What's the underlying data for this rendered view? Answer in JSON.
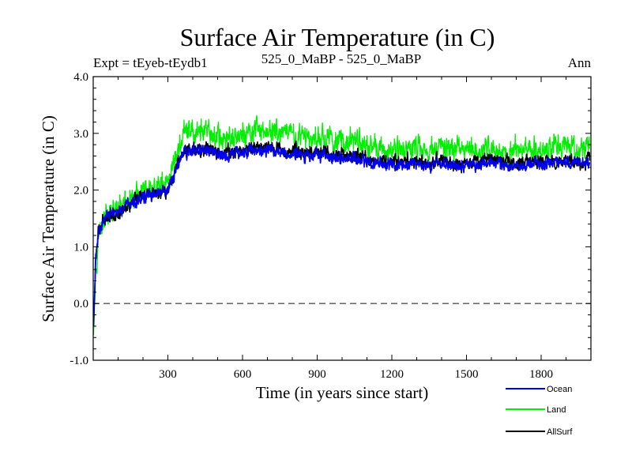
{
  "chart_data": {
    "type": "line",
    "title": "Surface Air Temperature (in C)",
    "subtitle_left": "Expt = tEyeb-tEydb1",
    "subtitle_center": "525_0_MaBP - 525_0_MaBP",
    "subtitle_right": "Ann",
    "xlabel": "Time (in years since start)",
    "ylabel": "Surface Air Temperature (in C)",
    "xlim": [
      0,
      2000
    ],
    "ylim": [
      -1.0,
      4.0
    ],
    "xticks": [
      300,
      600,
      900,
      1200,
      1500,
      1800
    ],
    "xtick_labels": [
      "300",
      "600",
      "900",
      "1200",
      "1500",
      "1800"
    ],
    "yticks": [
      -1.0,
      0.0,
      1.0,
      2.0,
      3.0,
      4.0
    ],
    "ytick_labels": [
      "-1.0",
      "0.0",
      "1.0",
      "2.0",
      "3.0",
      "4.0"
    ],
    "reference_line": {
      "y": 0.0,
      "style": "dashed",
      "color": "#555555"
    },
    "series": [
      {
        "name": "Land",
        "color": "#00ee00",
        "noise": 0.22,
        "x": [
          0,
          10,
          20,
          40,
          60,
          100,
          150,
          200,
          250,
          300,
          330,
          360,
          400,
          450,
          500,
          550,
          600,
          650,
          700,
          750,
          800,
          850,
          900,
          950,
          1000,
          1050,
          1100,
          1150,
          1200,
          1250,
          1300,
          1350,
          1400,
          1450,
          1500,
          1550,
          1600,
          1650,
          1700,
          1750,
          1800,
          1850,
          1900,
          1950,
          1995
        ],
        "values": [
          -0.6,
          0.6,
          1.2,
          1.45,
          1.55,
          1.65,
          1.8,
          1.95,
          2.05,
          2.15,
          2.6,
          2.95,
          3.05,
          3.0,
          2.95,
          2.9,
          2.95,
          3.0,
          3.05,
          3.0,
          2.95,
          2.9,
          2.95,
          2.9,
          2.85,
          2.85,
          2.8,
          2.75,
          2.7,
          2.75,
          2.75,
          2.7,
          2.75,
          2.7,
          2.75,
          2.7,
          2.75,
          2.7,
          2.7,
          2.75,
          2.7,
          2.75,
          2.8,
          2.7,
          2.75
        ]
      },
      {
        "name": "AllSurf",
        "color": "#000000",
        "noise": 0.12,
        "x": [
          0,
          10,
          20,
          40,
          60,
          100,
          150,
          200,
          250,
          300,
          330,
          360,
          400,
          450,
          500,
          550,
          600,
          650,
          700,
          750,
          800,
          850,
          900,
          950,
          1000,
          1050,
          1100,
          1150,
          1200,
          1250,
          1300,
          1350,
          1400,
          1450,
          1500,
          1550,
          1600,
          1650,
          1700,
          1750,
          1800,
          1850,
          1900,
          1950,
          1995
        ],
        "values": [
          -0.55,
          0.7,
          1.25,
          1.45,
          1.55,
          1.6,
          1.75,
          1.9,
          1.95,
          2.0,
          2.35,
          2.7,
          2.75,
          2.72,
          2.68,
          2.65,
          2.7,
          2.75,
          2.78,
          2.72,
          2.68,
          2.65,
          2.68,
          2.65,
          2.6,
          2.6,
          2.55,
          2.52,
          2.5,
          2.52,
          2.52,
          2.48,
          2.52,
          2.45,
          2.5,
          2.48,
          2.55,
          2.48,
          2.46,
          2.5,
          2.48,
          2.52,
          2.55,
          2.48,
          2.52
        ]
      },
      {
        "name": "Ocean",
        "color": "#0000ee",
        "noise": 0.11,
        "x": [
          0,
          10,
          20,
          40,
          60,
          100,
          150,
          200,
          250,
          300,
          330,
          360,
          400,
          450,
          500,
          550,
          600,
          650,
          700,
          750,
          800,
          850,
          900,
          950,
          1000,
          1050,
          1100,
          1150,
          1200,
          1250,
          1300,
          1350,
          1400,
          1450,
          1500,
          1550,
          1600,
          1650,
          1700,
          1750,
          1800,
          1850,
          1900,
          1950,
          1995
        ],
        "values": [
          -0.5,
          0.75,
          1.25,
          1.45,
          1.55,
          1.6,
          1.75,
          1.88,
          1.92,
          1.98,
          2.3,
          2.65,
          2.7,
          2.68,
          2.65,
          2.62,
          2.66,
          2.7,
          2.74,
          2.68,
          2.64,
          2.6,
          2.64,
          2.6,
          2.55,
          2.55,
          2.5,
          2.48,
          2.45,
          2.48,
          2.47,
          2.44,
          2.47,
          2.4,
          2.46,
          2.44,
          2.5,
          2.43,
          2.42,
          2.46,
          2.44,
          2.48,
          2.5,
          2.44,
          2.48
        ]
      }
    ],
    "legend": {
      "placement": "bottom-right",
      "entries": [
        {
          "label": "Ocean",
          "color": "#0000ee"
        },
        {
          "label": "Land",
          "color": "#00ee00"
        },
        {
          "label": "AllSurf",
          "color": "#000000"
        }
      ]
    }
  }
}
